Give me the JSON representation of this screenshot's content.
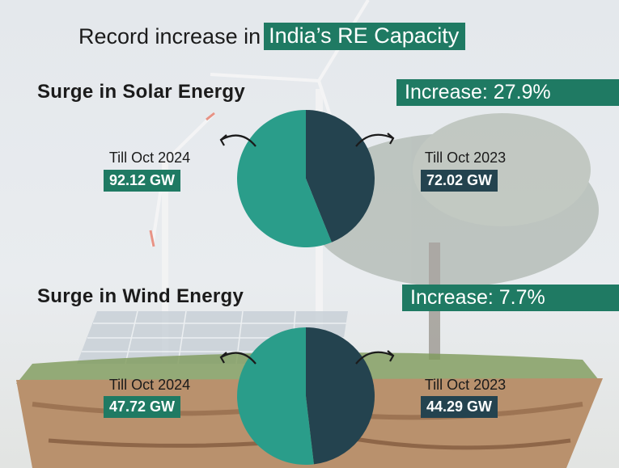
{
  "title": {
    "prefix": "Record increase in",
    "highlight": "India’s RE Capacity"
  },
  "colors": {
    "badge": "#1f7a63",
    "current": "#2a9d8a",
    "previous": "#24434f"
  },
  "chart_data": [
    {
      "type": "pie",
      "title": "Surge in Solar Energy",
      "annotation": "Increase: 27.9%",
      "slices": [
        {
          "label": "Till Oct 2023",
          "value": 72.02,
          "display": "72.02 GW",
          "color": "#24434f"
        },
        {
          "label": "Till Oct 2024",
          "value": 92.12,
          "display": "92.12 GW",
          "color": "#2a9d8a"
        }
      ]
    },
    {
      "type": "pie",
      "title": "Surge in Wind Energy",
      "annotation": "Increase: 7.7%",
      "slices": [
        {
          "label": "Till Oct 2023",
          "value": 44.29,
          "display": "44.29 GW",
          "color": "#24434f"
        },
        {
          "label": "Till Oct 2024",
          "value": 47.72,
          "display": "47.72 GW",
          "color": "#2a9d8a"
        }
      ]
    }
  ]
}
